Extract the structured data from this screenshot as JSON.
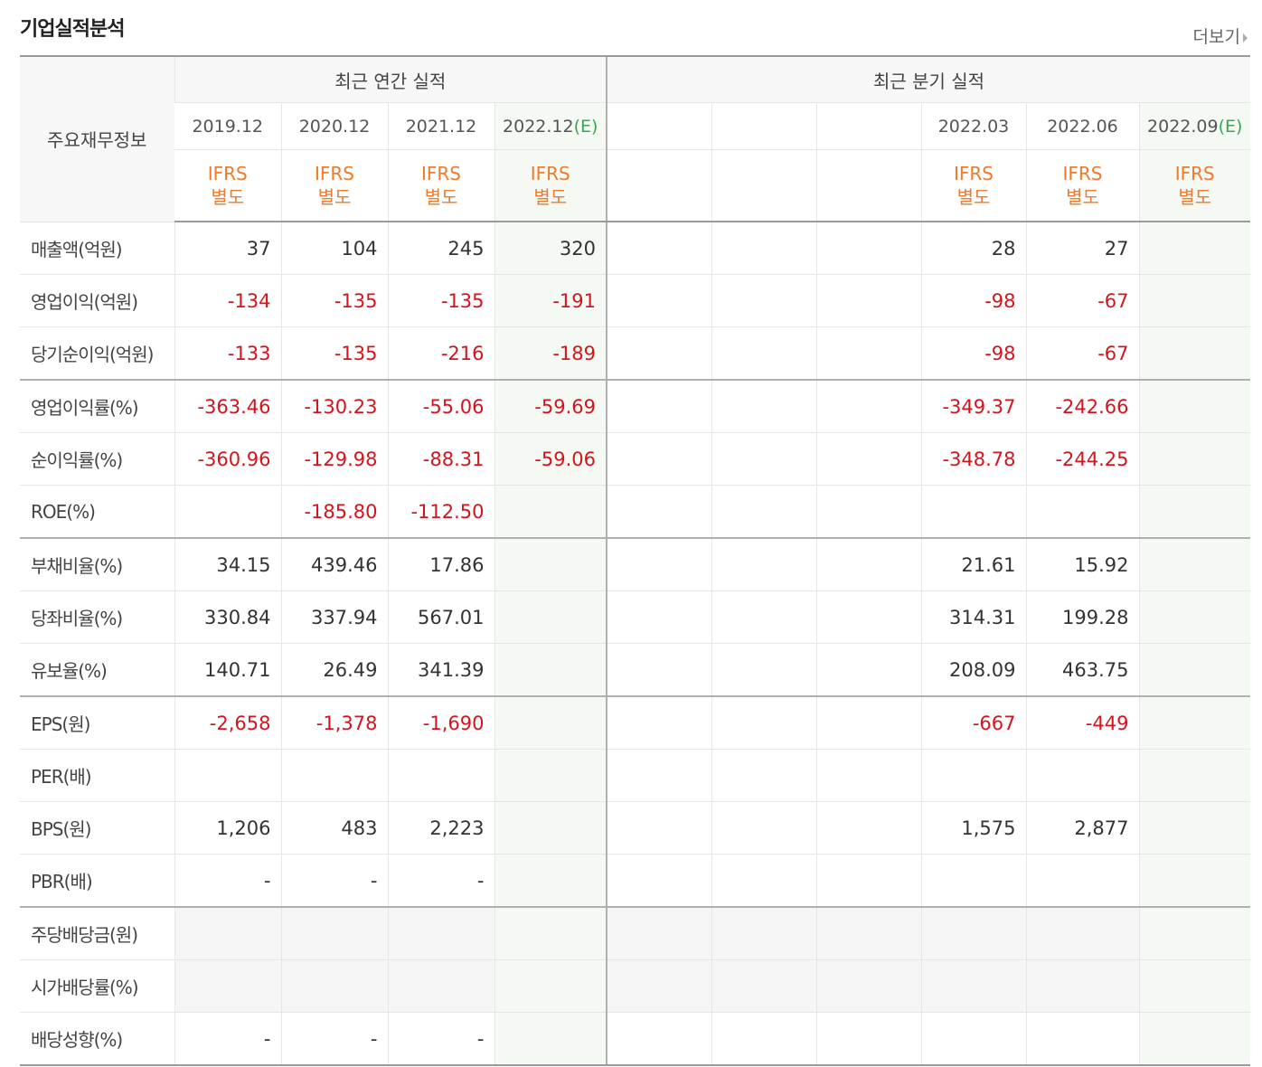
{
  "title": "기업실적분석",
  "more_label": "더보기",
  "header": {
    "label": "주요재무정보",
    "annual_title": "최근 연간 실적",
    "quarter_title": "최근 분기 실적",
    "annual_dates": [
      "2019.12",
      "2020.12",
      "2021.12",
      "2022.12"
    ],
    "quarter_dates": [
      "",
      "",
      "",
      "2022.03",
      "2022.06",
      "2022.09"
    ],
    "estimate_mark": "(E)",
    "ifrs_line1": "IFRS",
    "ifrs_line2": "별도"
  },
  "rows": [
    {
      "label": "매출액(억원)",
      "annual": [
        "37",
        "104",
        "245",
        "320"
      ],
      "quarter": [
        "",
        "",
        "",
        "28",
        "27",
        ""
      ]
    },
    {
      "label": "영업이익(억원)",
      "annual": [
        "-134",
        "-135",
        "-135",
        "-191"
      ],
      "quarter": [
        "",
        "",
        "",
        "-98",
        "-67",
        ""
      ]
    },
    {
      "label": "당기순이익(억원)",
      "annual": [
        "-133",
        "-135",
        "-216",
        "-189"
      ],
      "quarter": [
        "",
        "",
        "",
        "-98",
        "-67",
        ""
      ]
    },
    {
      "label": "영업이익률(%)",
      "annual": [
        "-363.46",
        "-130.23",
        "-55.06",
        "-59.69"
      ],
      "quarter": [
        "",
        "",
        "",
        "-349.37",
        "-242.66",
        ""
      ]
    },
    {
      "label": "순이익률(%)",
      "annual": [
        "-360.96",
        "-129.98",
        "-88.31",
        "-59.06"
      ],
      "quarter": [
        "",
        "",
        "",
        "-348.78",
        "-244.25",
        ""
      ]
    },
    {
      "label": "ROE(%)",
      "annual": [
        "",
        "-185.80",
        "-112.50",
        ""
      ],
      "quarter": [
        "",
        "",
        "",
        "",
        "",
        ""
      ]
    },
    {
      "label": "부채비율(%)",
      "annual": [
        "34.15",
        "439.46",
        "17.86",
        ""
      ],
      "quarter": [
        "",
        "",
        "",
        "21.61",
        "15.92",
        ""
      ]
    },
    {
      "label": "당좌비율(%)",
      "annual": [
        "330.84",
        "337.94",
        "567.01",
        ""
      ],
      "quarter": [
        "",
        "",
        "",
        "314.31",
        "199.28",
        ""
      ]
    },
    {
      "label": "유보율(%)",
      "annual": [
        "140.71",
        "26.49",
        "341.39",
        ""
      ],
      "quarter": [
        "",
        "",
        "",
        "208.09",
        "463.75",
        ""
      ]
    },
    {
      "label": "EPS(원)",
      "annual": [
        "-2,658",
        "-1,378",
        "-1,690",
        ""
      ],
      "quarter": [
        "",
        "",
        "",
        "-667",
        "-449",
        ""
      ]
    },
    {
      "label": "PER(배)",
      "annual": [
        "",
        "",
        "",
        ""
      ],
      "quarter": [
        "",
        "",
        "",
        "",
        "",
        ""
      ]
    },
    {
      "label": "BPS(원)",
      "annual": [
        "1,206",
        "483",
        "2,223",
        ""
      ],
      "quarter": [
        "",
        "",
        "",
        "1,575",
        "2,877",
        ""
      ]
    },
    {
      "label": "PBR(배)",
      "annual": [
        "-",
        "-",
        "-",
        ""
      ],
      "quarter": [
        "",
        "",
        "",
        "",
        "",
        ""
      ]
    },
    {
      "label": "주당배당금(원)",
      "annual": [
        "",
        "",
        "",
        ""
      ],
      "quarter": [
        "",
        "",
        "",
        "",
        "",
        ""
      ]
    },
    {
      "label": "시가배당률(%)",
      "annual": [
        "",
        "",
        "",
        ""
      ],
      "quarter": [
        "",
        "",
        "",
        "",
        "",
        ""
      ]
    },
    {
      "label": "배당성향(%)",
      "annual": [
        "-",
        "-",
        "-",
        ""
      ],
      "quarter": [
        "",
        "",
        "",
        "",
        "",
        ""
      ]
    }
  ]
}
